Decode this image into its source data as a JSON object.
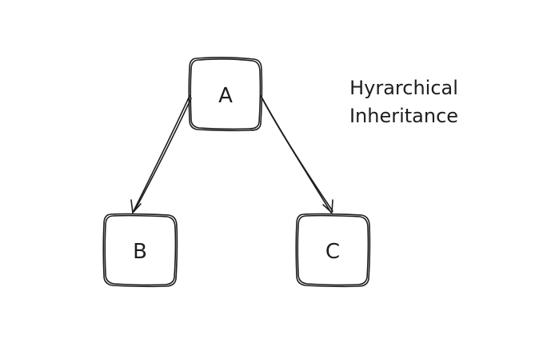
{
  "diagram": {
    "title_lines": [
      "Hyrarchical",
      "Inheritance"
    ],
    "nodes": {
      "a": {
        "label": "A"
      },
      "b": {
        "label": "B"
      },
      "c": {
        "label": "C"
      }
    },
    "edges": [
      {
        "from": "A",
        "to": "B"
      },
      {
        "from": "A",
        "to": "C"
      }
    ],
    "stroke_color": "#1e1e1e",
    "background_color": "#ffffff"
  }
}
